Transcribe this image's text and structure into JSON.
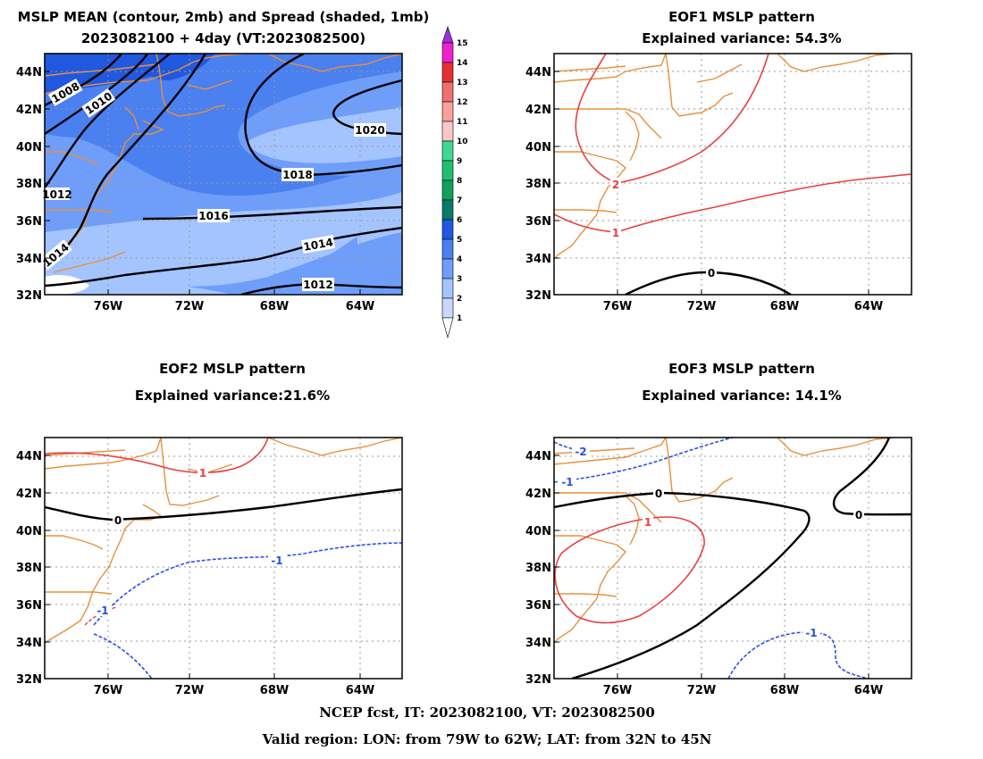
{
  "footer": {
    "line1": "NCEP fcst, IT: 2023082100, VT: 2023082500",
    "line2": "Valid region: LON: from 79W to 62W; LAT: from 32N to 45N"
  },
  "colorbar": {
    "labels": [
      "1",
      "2",
      "3",
      "4",
      "5",
      "6",
      "7",
      "8",
      "9",
      "10",
      "11",
      "12",
      "13",
      "14",
      "15"
    ],
    "colors": [
      "#c8d8ff",
      "#a4c4ff",
      "#6f9dfa",
      "#4a80f0",
      "#2058e0",
      "#0a7a6a",
      "#10a060",
      "#20c070",
      "#40d890",
      "#f8c8c8",
      "#f8a0a0",
      "#f07070",
      "#e83030",
      "#f020d0",
      "#9b30e0"
    ]
  },
  "panels": [
    {
      "id": "mean",
      "title_line1": "MSLP MEAN (contour, 2mb) and Spread (shaded, 1mb)",
      "title_line2": "2023082100 + 4day (VT:2023082500)",
      "contour_labels": [
        "1008",
        "1010",
        "1012",
        "1014",
        "1014",
        "1016",
        "1018",
        "1020",
        "1012"
      ]
    },
    {
      "id": "eof1",
      "title_line1": "EOF1 MSLP pattern",
      "title_line2": "Explained variance: 54.3%",
      "contour_labels": [
        "2",
        "1",
        "0"
      ]
    },
    {
      "id": "eof2",
      "title_line1": "EOF2 MSLP pattern",
      "title_line2": "Explained variance:21.6%",
      "contour_labels": [
        "1",
        "0",
        "-1",
        "-1"
      ]
    },
    {
      "id": "eof3",
      "title_line1": "EOF3 MSLP pattern",
      "title_line2": "Explained variance: 14.1%",
      "contour_labels": [
        "-2",
        "-1",
        "0",
        "0",
        "1",
        "-1"
      ]
    }
  ],
  "axes": {
    "lon_ticks": [
      "76W",
      "72W",
      "68W",
      "64W"
    ],
    "lat_ticks": [
      "44N",
      "42N",
      "40N",
      "38N",
      "36N",
      "34N",
      "32N"
    ]
  },
  "map_region": {
    "lon_min": -79,
    "lon_max": -62,
    "lat_min": 32,
    "lat_max": 45
  }
}
